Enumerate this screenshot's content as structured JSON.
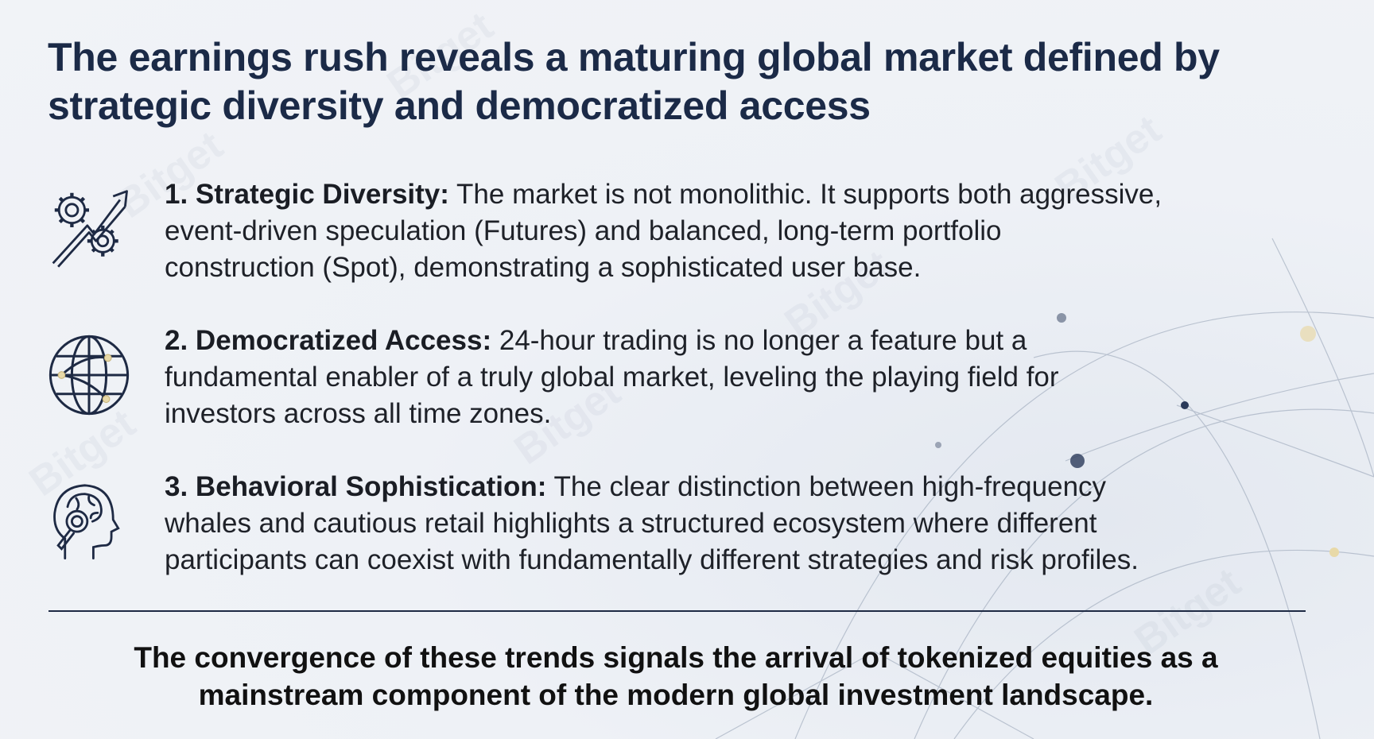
{
  "title": {
    "lines": [
      "The earnings rush reveals a maturing global market defined by",
      "strategic diversity and democratized access"
    ]
  },
  "items": [
    {
      "icon": "gears-trend-arrow-icon",
      "label": "1. Strategic Diversity:",
      "lines": [
        " The market is not monolithic. It supports both aggressive,",
        "event-driven speculation (Futures) and balanced, long-term portfolio",
        "construction (Spot), demonstrating a sophisticated user base."
      ]
    },
    {
      "icon": "globe-network-icon",
      "label": "2. Democratized Access:",
      "lines": [
        " 24-hour trading is no longer a feature but a",
        "fundamental enabler of a truly global market, leveling the playing field for",
        "investors across all time zones."
      ]
    },
    {
      "icon": "head-brain-magnifier-icon",
      "label": "3. Behavioral Sophistication:",
      "lines": [
        " The clear distinction between high-frequency",
        "whales and cautious retail highlights a structured ecosystem where different",
        "participants can coexist with fundamentally different strategies and risk profiles."
      ]
    }
  ],
  "conclusion": {
    "lines": [
      "The convergence of these trends signals the arrival of tokenized equities as a",
      "mainstream component of the modern global investment landscape."
    ]
  },
  "watermark": "Bitget",
  "colors": {
    "title": "#1b2a47",
    "text": "#1e2128",
    "divider": "#1e2a44",
    "background": "#eef1f6",
    "node_accent": "#e8d9a8"
  }
}
